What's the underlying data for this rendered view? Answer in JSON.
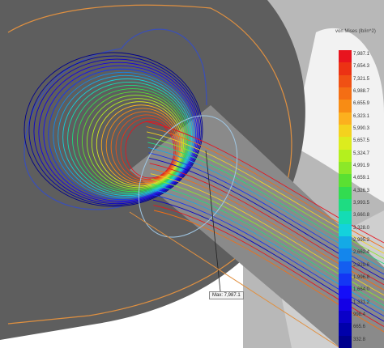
{
  "legend": {
    "title": "von Mises (lb/in^2)",
    "ticks": [
      "7,987.1",
      "7,654.3",
      "7,321.5",
      "6,988.7",
      "6,655.9",
      "6,323.1",
      "5,990.3",
      "5,657.5",
      "5,324.7",
      "4,991.9",
      "4,659.1",
      "4,326.3",
      "3,993.5",
      "3,660.8",
      "3,328.0",
      "2,995.2",
      "2,662.4",
      "2,329.6",
      "1,996.8",
      "1,664.0",
      "1,331.2",
      "998.4",
      "665.6",
      "332.8"
    ],
    "colors": [
      "#e8141e",
      "#ec3214",
      "#f05014",
      "#f46e14",
      "#f88c14",
      "#fcb01e",
      "#f4d21e",
      "#dcec1e",
      "#b4f01e",
      "#8ce828",
      "#5ae032",
      "#32dc50",
      "#1edc82",
      "#14dcb4",
      "#14d2dc",
      "#14aae6",
      "#1486ec",
      "#145ef0",
      "#1436f4",
      "#140ef8",
      "#1400e6",
      "#0a00c8",
      "#0000aa",
      "#00008c"
    ]
  },
  "probe": {
    "label": "Max: 7,987.1"
  },
  "colors": {
    "background": "#ffffff",
    "part_dark": "#606060",
    "part_light": "#b4b4b4",
    "edge_orange": "#e09040",
    "edge_blue": "#3c50b4"
  }
}
